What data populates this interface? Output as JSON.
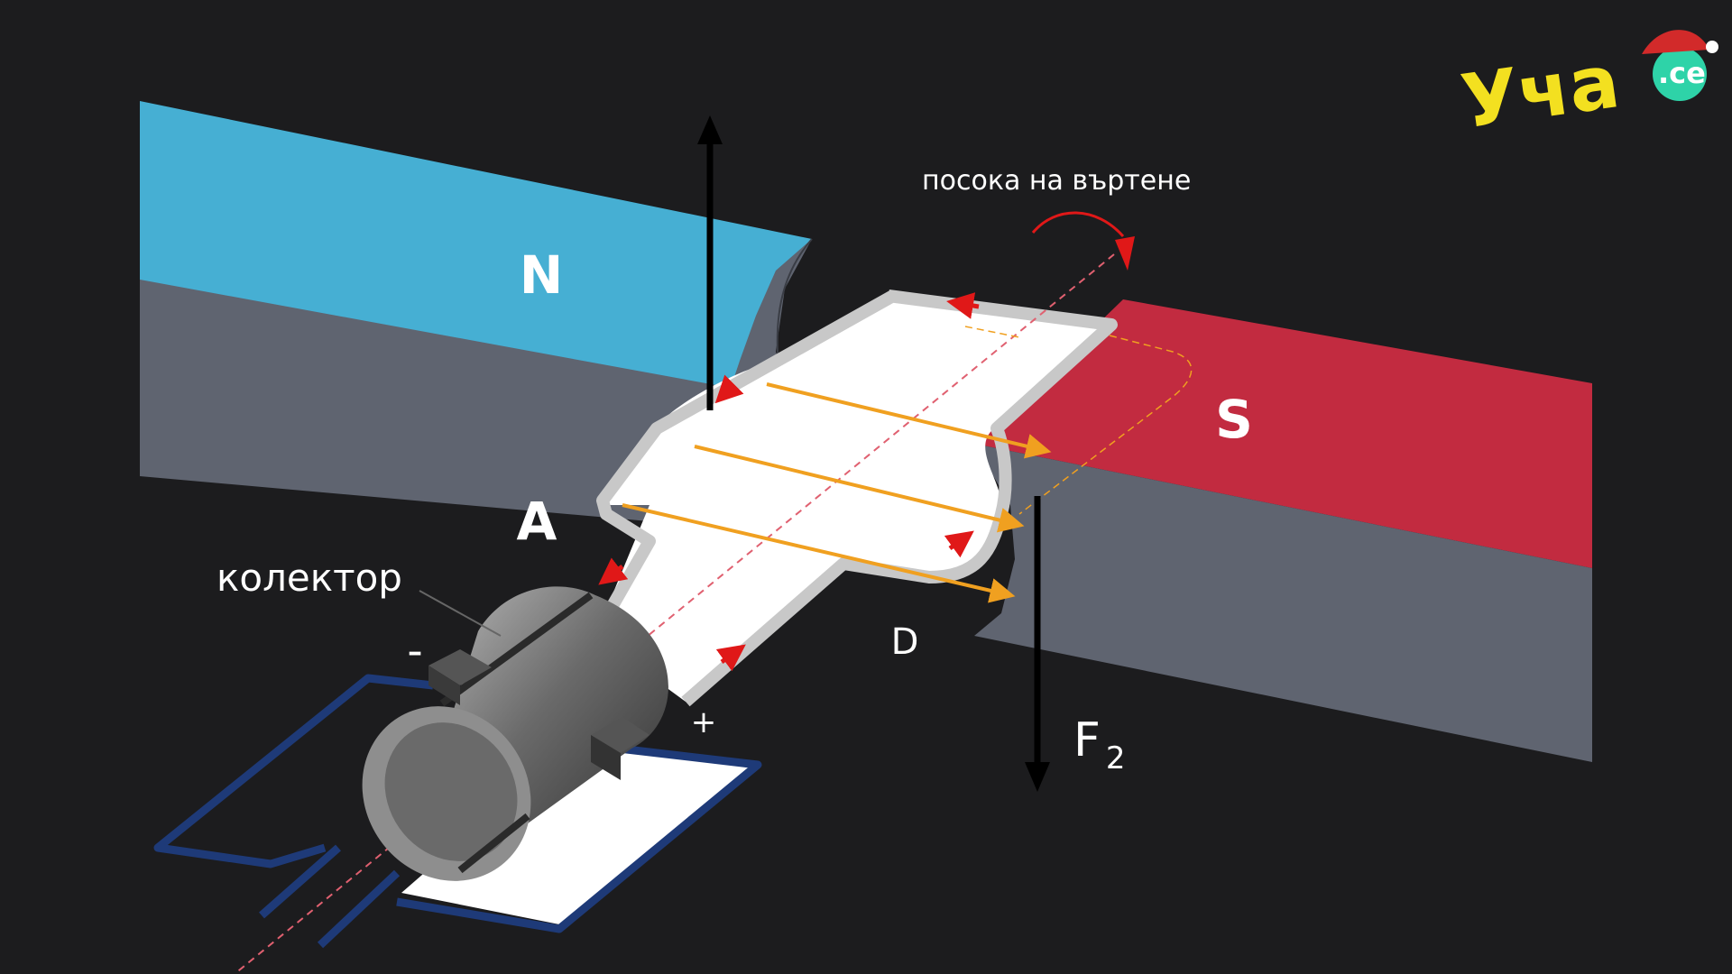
{
  "labels": {
    "north_pole": "N",
    "south_pole": "S",
    "point_a": "A",
    "point_d": "D",
    "rotation_direction": "посока на въртене",
    "commutator": "колектор",
    "minus": "-",
    "plus": "+",
    "force_symbol": "F",
    "force_subscript": "2"
  },
  "logo": {
    "main": "Уча",
    "suffix": ".се"
  },
  "colors": {
    "background": "#1c1c1e",
    "north_top": "#46afd3",
    "south_top": "#c22b40",
    "magnet_side": "#5f6470",
    "field_lines": "#f0a020",
    "current_arrows": "#e01818",
    "circuit": "#1e3a78",
    "logo_yellow": "#f3e020",
    "logo_teal": "#2ed3a8"
  }
}
